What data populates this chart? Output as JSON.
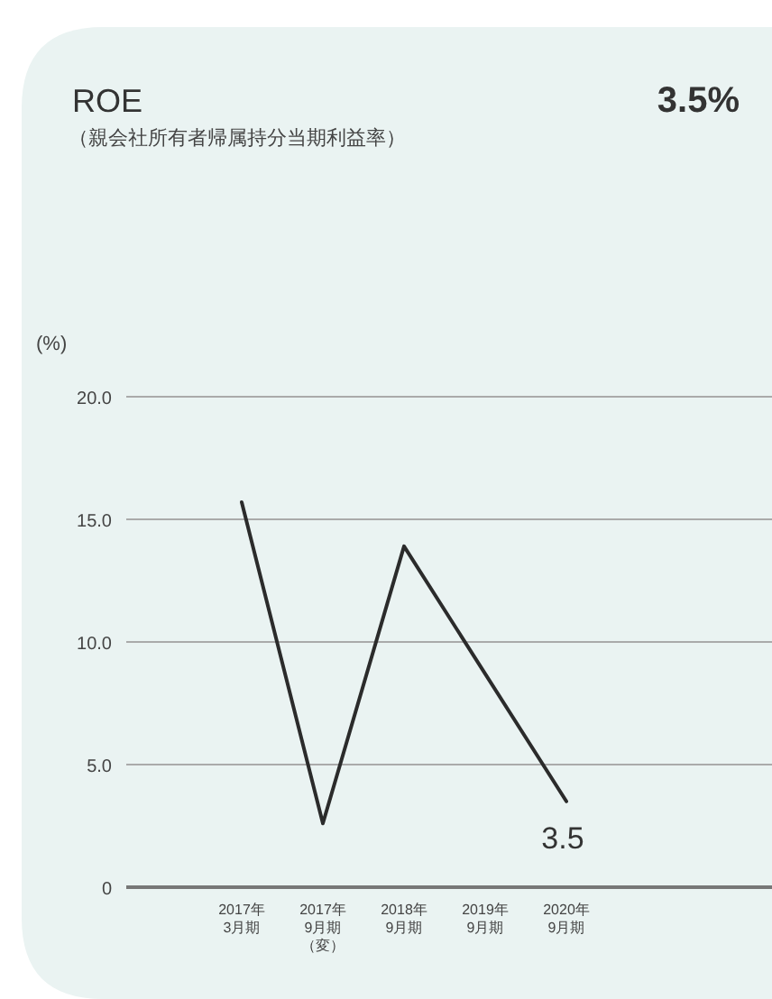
{
  "chart_data": {
    "type": "line",
    "title": "ROE",
    "subtitle": "（親会社所有者帰属持分当期利益率）",
    "ylabel": "(%)",
    "annotations": [
      "3.5%"
    ],
    "categories": [
      "2017年3月期",
      "2017年9月期（変）",
      "2018年9月期",
      "2019年9月期",
      "2020年9月期"
    ],
    "series": [
      {
        "color": "#2b2b2b",
        "values": [
          15.7,
          2.6,
          13.9,
          8.7,
          3.5
        ],
        "value_labels": [
          null,
          null,
          null,
          null,
          "3.5"
        ]
      }
    ],
    "ylim": [
      0,
      20
    ],
    "yticks": [
      0,
      {
        "value": 5,
        "label": "5.0"
      },
      {
        "value": 10,
        "label": "10.0"
      },
      {
        "value": 15,
        "label": "15.0"
      },
      {
        "value": 20,
        "label": "20.0"
      }
    ],
    "grid": "y",
    "marker": "none",
    "line_style": "solid"
  }
}
